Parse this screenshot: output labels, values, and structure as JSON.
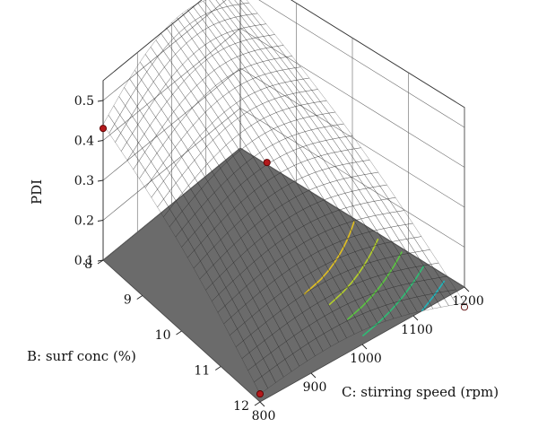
{
  "chart_data": {
    "type": "surface",
    "zlabel": "PDI",
    "xlabel": "C: stirring speed (rpm)",
    "ylabel": "B: surf conc (%)",
    "x_ticks": [
      "800",
      "900",
      "1000",
      "1100",
      "1200"
    ],
    "y_ticks": [
      "8",
      "9",
      "10",
      "11",
      "12"
    ],
    "z_ticks": [
      "0.1",
      "0.2",
      "0.3",
      "0.4",
      "0.5"
    ],
    "xlim": [
      800,
      1200
    ],
    "ylim": [
      8,
      12
    ],
    "zlim": [
      0.1,
      0.5
    ],
    "colormap": [
      "#1f3fa0",
      "#1fb3c8",
      "#37c04a",
      "#d7d224",
      "#f39a1f",
      "#e6231e"
    ],
    "floor_color": "#6b6b6b",
    "contour_levels": [
      0.1,
      0.15,
      0.2,
      0.25,
      0.3
    ],
    "surface_corners": [
      {
        "x": 800,
        "y": 8,
        "z": 0.44
      },
      {
        "x": 1200,
        "y": 8,
        "z": 0.49
      },
      {
        "x": 800,
        "y": 12,
        "z": 0.12
      },
      {
        "x": 1200,
        "y": 12,
        "z": 0.06
      }
    ],
    "design_points": [
      {
        "x": 800,
        "y": 8,
        "z": 0.43
      },
      {
        "x": 1200,
        "y": 8,
        "z": 0.49
      },
      {
        "x": 1000,
        "y": 10,
        "z": 0.38
      },
      {
        "x": 800,
        "y": 12,
        "z": 0.12
      },
      {
        "x": 1200,
        "y": 12,
        "z": 0.05
      }
    ]
  }
}
